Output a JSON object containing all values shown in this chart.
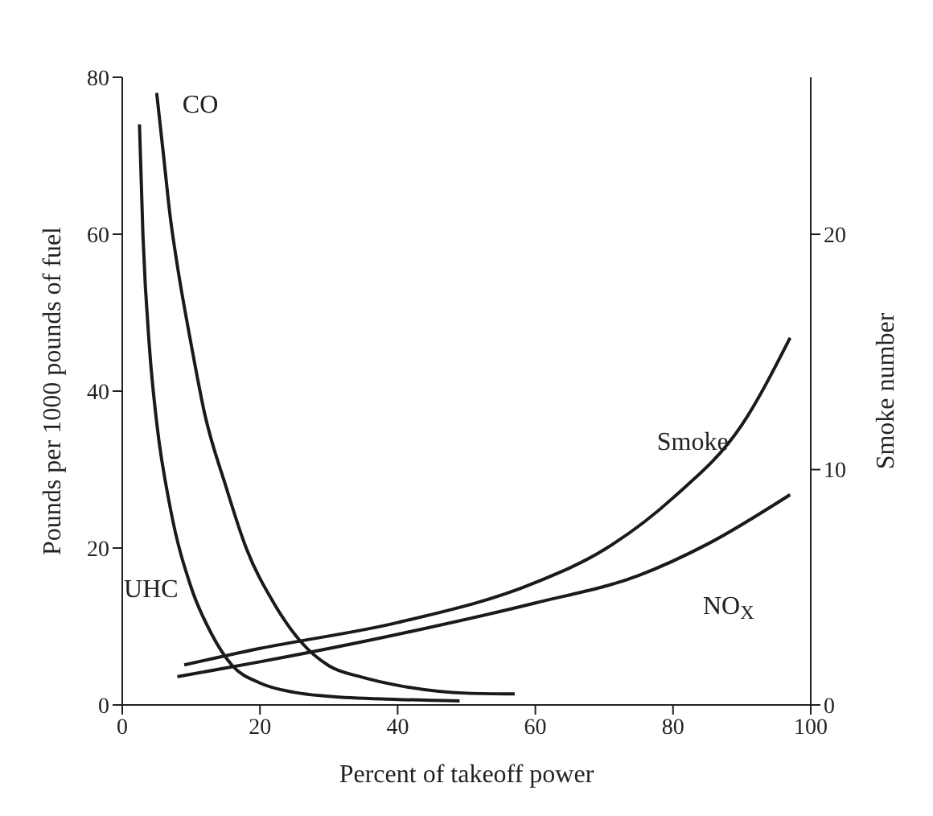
{
  "chart_data": {
    "type": "line",
    "xlabel": "Percent of takeoff power",
    "ylabel": "Pounds per 1000 pounds of fuel",
    "y2label": "Smoke number",
    "xlim": [
      0,
      100
    ],
    "xticks": [
      0,
      20,
      40,
      60,
      80,
      100
    ],
    "ylim": [
      0,
      80
    ],
    "yticks": [
      0,
      20,
      40,
      60,
      80
    ],
    "y2lim": [
      0,
      26.67
    ],
    "y2ticks": [
      0,
      10,
      20
    ],
    "marker": "none",
    "line_style": "solid",
    "series": [
      {
        "name": "UHC",
        "color": "#1a1a1a",
        "x": [
          2.5,
          3,
          4,
          5,
          7,
          10,
          13,
          16,
          20,
          25,
          30,
          40,
          49
        ],
        "values": [
          74,
          60,
          45,
          36,
          25,
          15,
          9,
          5,
          2.8,
          1.6,
          1.1,
          0.7,
          0.5
        ]
      },
      {
        "name": "CO",
        "color": "#1a1a1a",
        "x": [
          5,
          6,
          7,
          8,
          10,
          12,
          15,
          18,
          22,
          26,
          30,
          35,
          40,
          50,
          57
        ],
        "values": [
          78,
          70,
          62,
          56,
          46,
          37,
          28,
          20,
          13,
          8,
          5,
          3.5,
          2.5,
          1.5,
          1.4
        ]
      },
      {
        "name": "Smoke",
        "color": "#1a1a1a",
        "axis": "y2",
        "x": [
          9,
          20,
          40,
          60,
          70,
          80,
          90,
          97
        ],
        "values": [
          1.7,
          2.4,
          3.5,
          5.2,
          6.6,
          8.8,
          11.9,
          15.6
        ]
      },
      {
        "name": "NO$_{X}$",
        "color": "#1a1a1a",
        "x": [
          8,
          20,
          40,
          60,
          75,
          85,
          97
        ],
        "values": [
          3.6,
          5.5,
          9,
          13,
          16.5,
          20.5,
          26.8
        ]
      }
    ]
  }
}
